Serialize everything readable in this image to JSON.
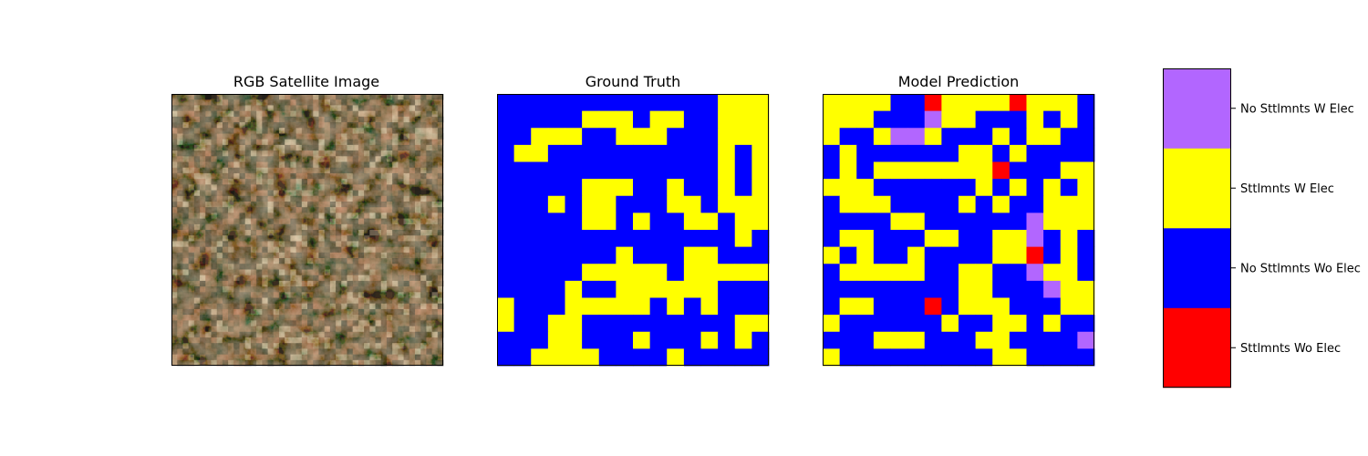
{
  "chart_data": [
    {
      "type": "image",
      "title": "RGB Satellite Image",
      "palette": [
        "#8a6446",
        "#2e2c22",
        "#cdb99b",
        "#5d4a33",
        "#a26a4e",
        "#403b30"
      ]
    },
    {
      "type": "heatmap",
      "title": "Ground Truth",
      "rows": 16,
      "cols": 16,
      "classes": [
        0,
        1,
        2,
        3
      ],
      "grid": [
        [
          1,
          1,
          1,
          1,
          1,
          1,
          1,
          1,
          1,
          1,
          1,
          1,
          1,
          2,
          2,
          2
        ],
        [
          1,
          1,
          1,
          1,
          1,
          2,
          2,
          2,
          1,
          2,
          2,
          1,
          1,
          2,
          2,
          2
        ],
        [
          1,
          1,
          2,
          2,
          2,
          1,
          1,
          2,
          2,
          2,
          1,
          1,
          1,
          2,
          2,
          2
        ],
        [
          1,
          2,
          2,
          1,
          1,
          1,
          1,
          1,
          1,
          1,
          1,
          1,
          1,
          2,
          1,
          2
        ],
        [
          1,
          1,
          1,
          1,
          1,
          1,
          1,
          1,
          1,
          1,
          1,
          1,
          1,
          2,
          1,
          2
        ],
        [
          1,
          1,
          1,
          1,
          1,
          2,
          2,
          2,
          1,
          1,
          2,
          1,
          1,
          2,
          1,
          2
        ],
        [
          1,
          1,
          1,
          2,
          1,
          2,
          2,
          1,
          1,
          1,
          2,
          2,
          1,
          2,
          2,
          2
        ],
        [
          1,
          1,
          1,
          1,
          1,
          2,
          2,
          1,
          2,
          1,
          1,
          2,
          2,
          1,
          2,
          2
        ],
        [
          1,
          1,
          1,
          1,
          1,
          1,
          1,
          1,
          1,
          1,
          1,
          1,
          1,
          1,
          2,
          1
        ],
        [
          1,
          1,
          1,
          1,
          1,
          1,
          1,
          2,
          1,
          1,
          1,
          2,
          2,
          1,
          1,
          1
        ],
        [
          1,
          1,
          1,
          1,
          1,
          2,
          2,
          2,
          2,
          2,
          1,
          2,
          2,
          2,
          2,
          2
        ],
        [
          1,
          1,
          1,
          1,
          2,
          1,
          1,
          2,
          2,
          2,
          2,
          2,
          2,
          1,
          1,
          1
        ],
        [
          2,
          1,
          1,
          1,
          2,
          2,
          2,
          2,
          2,
          1,
          2,
          1,
          2,
          1,
          1,
          1
        ],
        [
          2,
          1,
          1,
          2,
          2,
          1,
          1,
          1,
          1,
          1,
          1,
          1,
          1,
          1,
          2,
          2
        ],
        [
          1,
          1,
          1,
          2,
          2,
          1,
          1,
          1,
          2,
          1,
          1,
          1,
          2,
          1,
          2,
          1
        ],
        [
          1,
          1,
          2,
          2,
          2,
          2,
          1,
          1,
          1,
          1,
          2,
          1,
          1,
          1,
          1,
          1
        ]
      ]
    },
    {
      "type": "heatmap",
      "title": "Model Prediction",
      "rows": 16,
      "cols": 16,
      "classes": [
        0,
        1,
        2,
        3
      ],
      "grid": [
        [
          2,
          2,
          2,
          2,
          1,
          1,
          0,
          2,
          2,
          2,
          2,
          0,
          2,
          2,
          2,
          1
        ],
        [
          2,
          2,
          2,
          1,
          1,
          1,
          3,
          2,
          2,
          1,
          1,
          1,
          2,
          1,
          2,
          1
        ],
        [
          2,
          1,
          1,
          2,
          3,
          3,
          2,
          1,
          1,
          1,
          2,
          1,
          2,
          2,
          1,
          1
        ],
        [
          1,
          2,
          1,
          1,
          1,
          1,
          1,
          1,
          2,
          2,
          1,
          2,
          1,
          1,
          1,
          1
        ],
        [
          1,
          2,
          1,
          2,
          2,
          2,
          2,
          2,
          2,
          2,
          0,
          1,
          1,
          1,
          2,
          2
        ],
        [
          2,
          2,
          2,
          1,
          1,
          1,
          1,
          1,
          1,
          2,
          1,
          2,
          1,
          2,
          1,
          2
        ],
        [
          1,
          2,
          2,
          2,
          1,
          1,
          1,
          1,
          2,
          1,
          2,
          1,
          1,
          2,
          2,
          2
        ],
        [
          1,
          1,
          1,
          1,
          2,
          2,
          1,
          1,
          1,
          1,
          1,
          1,
          3,
          2,
          2,
          2
        ],
        [
          1,
          2,
          2,
          1,
          1,
          1,
          2,
          2,
          1,
          1,
          2,
          2,
          3,
          1,
          2,
          1
        ],
        [
          2,
          1,
          2,
          1,
          1,
          2,
          1,
          1,
          1,
          1,
          2,
          2,
          0,
          1,
          2,
          1
        ],
        [
          1,
          2,
          2,
          2,
          2,
          2,
          1,
          1,
          2,
          2,
          1,
          1,
          3,
          2,
          2,
          1
        ],
        [
          1,
          1,
          1,
          1,
          1,
          1,
          1,
          1,
          2,
          2,
          1,
          1,
          1,
          3,
          2,
          2
        ],
        [
          1,
          2,
          2,
          1,
          1,
          1,
          0,
          1,
          2,
          2,
          2,
          1,
          1,
          1,
          2,
          2
        ],
        [
          2,
          1,
          1,
          1,
          1,
          1,
          1,
          2,
          1,
          1,
          2,
          2,
          1,
          2,
          1,
          1
        ],
        [
          1,
          1,
          1,
          2,
          2,
          2,
          1,
          1,
          1,
          2,
          2,
          1,
          1,
          1,
          1,
          3
        ],
        [
          2,
          1,
          1,
          1,
          1,
          1,
          1,
          1,
          1,
          1,
          2,
          2,
          1,
          1,
          1,
          1
        ]
      ]
    },
    {
      "type": "colorbar",
      "categories": [
        "Sttlmnts Wo Elec",
        "No Sttlmnts Wo Elec",
        "Sttlmnts W Elec",
        "No Sttlmnts W Elec"
      ],
      "colors": [
        "#ff0000",
        "#0000ff",
        "#ffff00",
        "#b266ff"
      ]
    }
  ]
}
